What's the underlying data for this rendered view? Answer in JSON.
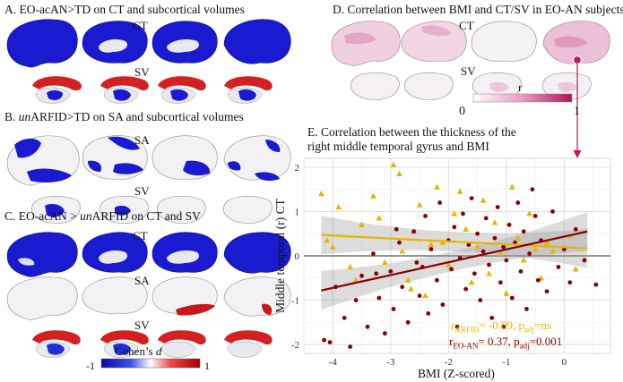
{
  "panels": {
    "a": {
      "title_prefix": "A. EO-acAN>TD on CT and subcortical volumes",
      "ct": "CT",
      "sv": "SV"
    },
    "b": {
      "title_prefix": "B. ",
      "title_italic": "un",
      "title_rest": "ARFID>TD on SA and subcortical volumes",
      "sa": "SA",
      "sv": "SV"
    },
    "c": {
      "title_prefix": "C. EO-acAN > ",
      "title_italic": "un",
      "title_rest": "ARFID on CT and SV",
      "ct": "CT",
      "sa": "SA",
      "sv": "SV"
    },
    "d": {
      "title": "D. Correlation between BMI and CT/SV in EO-AN subjects",
      "ct": "CT",
      "sv": "SV",
      "colorbar": {
        "label": "r",
        "min": "0",
        "max": "1"
      }
    },
    "e": {
      "title_line1": "E. Correlation between the thickness of the",
      "title_line2": "right middle temporal gyrus and BMI"
    }
  },
  "colorbar_d": {
    "label_prefix": "Cohen’s ",
    "label_italic": "d",
    "min": "-1",
    "max": "1"
  },
  "colors": {
    "blue": "#1414c8",
    "red": "#d42020",
    "arfid": "#e8b400",
    "eoan": "#8b0000",
    "pink": "#c2186b"
  },
  "chart_data": {
    "type": "scatter",
    "xlabel": "BMI (Z-scored)",
    "ylabel": "Middle temporal (r) CT",
    "xlim": [
      -4.5,
      0.8
    ],
    "ylim": [
      -2.2,
      2.2
    ],
    "xticks": [
      "-4",
      "-3",
      "-2",
      "-1",
      "0"
    ],
    "yticks": [
      "-2",
      "-1",
      "0",
      "1",
      "2"
    ],
    "grid": true,
    "annotations": {
      "arfid": {
        "r_sub": "ARFID",
        "text": "= -0.09, p",
        "p_sub": "adj",
        "p_val": "=ns"
      },
      "eoan": {
        "r_sub": "EO-AN",
        "text": "= 0.37, p",
        "p_sub": "adj",
        "p_val": "=0.001"
      }
    },
    "series": [
      {
        "key": "arfid",
        "marker": "triangle",
        "fit": [
          [
            -4.2,
            0.47
          ],
          [
            0.4,
            0.17
          ]
        ],
        "points": [
          [
            -4.2,
            1.4
          ],
          [
            -4.1,
            0.35
          ],
          [
            -4.0,
            0.2
          ],
          [
            -3.9,
            1.1
          ],
          [
            -3.7,
            -0.25
          ],
          [
            -3.5,
            0.7
          ],
          [
            -3.3,
            1.35
          ],
          [
            -3.2,
            0.85
          ],
          [
            -3.1,
            -0.15
          ],
          [
            -2.95,
            2.05
          ],
          [
            -2.85,
            1.85
          ],
          [
            -2.8,
            0.1
          ],
          [
            -2.7,
            -0.55
          ],
          [
            -2.6,
            0.55
          ],
          [
            -2.5,
            1.15
          ],
          [
            -2.4,
            -0.9
          ],
          [
            -2.3,
            0.25
          ],
          [
            -2.2,
            1.55
          ],
          [
            -2.1,
            0.3
          ],
          [
            -2.0,
            -0.2
          ],
          [
            -1.9,
            0.95
          ],
          [
            -1.8,
            1.45
          ],
          [
            -1.7,
            0.6
          ],
          [
            -1.6,
            -0.6
          ],
          [
            -1.5,
            0.2
          ],
          [
            -1.4,
            1.25
          ],
          [
            -1.3,
            -0.4
          ],
          [
            -1.2,
            0.75
          ],
          [
            -1.1,
            0.05
          ],
          [
            -1.0,
            -0.85
          ],
          [
            -0.9,
            1.55
          ],
          [
            -0.8,
            0.4
          ],
          [
            -0.7,
            -0.1
          ],
          [
            -0.6,
            0.95
          ],
          [
            -0.5,
            0.15
          ],
          [
            -0.4,
            -0.5
          ],
          [
            -0.3,
            0.3
          ],
          [
            -0.2,
            0.1
          ],
          [
            0.1,
            0.45
          ],
          [
            0.2,
            -0.3
          ],
          [
            -2.65,
            -0.75
          ],
          [
            -3.6,
            -0.55
          ]
        ]
      },
      {
        "key": "eoan",
        "marker": "circle",
        "fit": [
          [
            -4.2,
            -0.78
          ],
          [
            0.4,
            0.55
          ]
        ],
        "points": [
          [
            -4.15,
            -1.9
          ],
          [
            -4.05,
            -1.95
          ],
          [
            -3.95,
            -0.7
          ],
          [
            -3.8,
            -1.4
          ],
          [
            -3.7,
            -2.05
          ],
          [
            -3.6,
            -1.0
          ],
          [
            -3.5,
            -0.45
          ],
          [
            -3.4,
            -1.6
          ],
          [
            -3.3,
            0.05
          ],
          [
            -3.2,
            -0.95
          ],
          [
            -3.1,
            -1.75
          ],
          [
            -3.0,
            -0.35
          ],
          [
            -2.95,
            -1.2
          ],
          [
            -2.85,
            0.3
          ],
          [
            -2.8,
            -0.7
          ],
          [
            -2.7,
            -1.5
          ],
          [
            -2.6,
            0.55
          ],
          [
            -2.55,
            -0.15
          ],
          [
            -2.5,
            -0.9
          ],
          [
            -2.4,
            0.9
          ],
          [
            -2.35,
            -1.3
          ],
          [
            -2.3,
            0.15
          ],
          [
            -2.2,
            -0.55
          ],
          [
            -2.15,
            1.2
          ],
          [
            -2.1,
            -1.1
          ],
          [
            -2.0,
            0.35
          ],
          [
            -1.95,
            -0.3
          ],
          [
            -1.9,
            0.65
          ],
          [
            -1.85,
            -1.6
          ],
          [
            -1.8,
            -0.05
          ],
          [
            -1.75,
            0.95
          ],
          [
            -1.7,
            -0.75
          ],
          [
            -1.65,
            0.25
          ],
          [
            -1.6,
            1.3
          ],
          [
            -1.55,
            -0.4
          ],
          [
            -1.5,
            0.5
          ],
          [
            -1.45,
            -1.0
          ],
          [
            -1.4,
            0.1
          ],
          [
            -1.35,
            0.85
          ],
          [
            -1.3,
            -0.2
          ],
          [
            -1.25,
            -1.4
          ],
          [
            -1.2,
            0.4
          ],
          [
            -1.15,
            1.1
          ],
          [
            -1.1,
            -0.6
          ],
          [
            -1.05,
            0.2
          ],
          [
            -1.0,
            -0.1
          ],
          [
            -0.95,
            0.7
          ],
          [
            -0.9,
            -0.95
          ],
          [
            -0.85,
            0.3
          ],
          [
            -0.8,
            1.2
          ],
          [
            -0.75,
            -0.35
          ],
          [
            -0.7,
            0.55
          ],
          [
            -0.65,
            -1.2
          ],
          [
            -0.6,
            0.05
          ],
          [
            -0.5,
            0.9
          ],
          [
            -0.45,
            -0.55
          ],
          [
            -0.4,
            0.35
          ],
          [
            -0.3,
            -0.8
          ],
          [
            -0.2,
            1.0
          ],
          [
            -0.1,
            -0.25
          ],
          [
            0.0,
            0.15
          ],
          [
            0.1,
            -0.6
          ],
          [
            0.2,
            0.6
          ],
          [
            0.35,
            -0.1
          ],
          [
            0.55,
            -0.65
          ],
          [
            -3.25,
            -0.4
          ],
          [
            -2.45,
            -0.25
          ],
          [
            -1.05,
            -1.6
          ],
          [
            -0.55,
            1.5
          ],
          [
            -2.9,
            0.6
          ]
        ]
      }
    ]
  }
}
